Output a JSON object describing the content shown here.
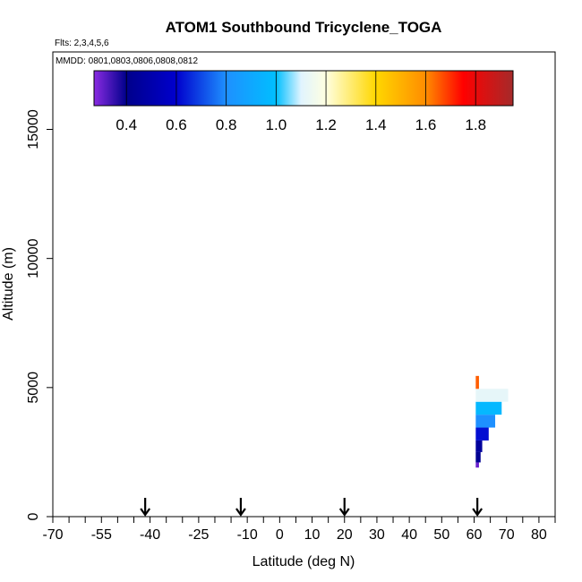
{
  "chart_data": {
    "type": "heatmap",
    "title": "ATOM1 Southbound Tricyclene_TOGA",
    "flights_label": "Flts: 2,3,4,5,6",
    "dates_label": "MMDD: 0801,0803,0806,0808,0812",
    "xlabel": "Latitude (deg N)",
    "ylabel": "Altitude (m)",
    "xlim": [
      -70,
      85
    ],
    "ylim": [
      0,
      18000
    ],
    "x_ticks": [
      -70,
      -55,
      -40,
      -25,
      -10,
      0,
      10,
      20,
      30,
      40,
      50,
      60,
      70,
      80
    ],
    "x_tick_labels": [
      "-70",
      "-55",
      "-40",
      "-25",
      "-10",
      "0",
      "10",
      "20",
      "30",
      "40",
      "50",
      "60",
      "70",
      "80"
    ],
    "x_minor_ticks": [
      -65,
      -60,
      -50,
      -45,
      -35,
      -30,
      -20,
      -15,
      -5,
      5,
      15,
      25,
      35,
      45,
      55,
      65,
      75,
      85
    ],
    "y_ticks": [
      0,
      5000,
      10000,
      15000
    ],
    "y_tick_labels": [
      "0",
      "5000",
      "10000",
      "15000"
    ],
    "colorbar": {
      "range": [
        0.27,
        1.95
      ],
      "ticks": [
        0.4,
        0.6,
        0.8,
        1.0,
        1.2,
        1.4,
        1.6,
        1.8
      ],
      "tick_labels": [
        "0.4",
        "0.6",
        "0.8",
        "1.0",
        "1.2",
        "1.4",
        "1.6",
        "1.8"
      ],
      "stops": [
        {
          "value": 0.27,
          "color": "#8a2be2"
        },
        {
          "value": 0.4,
          "color": "#00008b"
        },
        {
          "value": 0.6,
          "color": "#0000cd"
        },
        {
          "value": 0.8,
          "color": "#1e90ff"
        },
        {
          "value": 1.0,
          "color": "#00bfff"
        },
        {
          "value": 1.1,
          "color": "#e0f4ff"
        },
        {
          "value": 1.2,
          "color": "#ffffe0"
        },
        {
          "value": 1.4,
          "color": "#ffd700"
        },
        {
          "value": 1.6,
          "color": "#ff8c00"
        },
        {
          "value": 1.75,
          "color": "#ff0000"
        },
        {
          "value": 1.95,
          "color": "#a52a2a"
        }
      ]
    },
    "flight_markers_lat": [
      -41.5,
      -12,
      20,
      61
    ],
    "series": [
      {
        "name": "Tricyclene ratio profile",
        "points": [
          {
            "lat_min": 60.5,
            "lat_max": 61.5,
            "alt_min": 1900,
            "alt_max": 2100,
            "value": 0.3
          },
          {
            "lat_min": 60.5,
            "lat_max": 62.0,
            "alt_min": 2100,
            "alt_max": 2500,
            "value": 0.42
          },
          {
            "lat_min": 60.5,
            "lat_max": 62.5,
            "alt_min": 2500,
            "alt_max": 2950,
            "value": 0.45
          },
          {
            "lat_min": 60.5,
            "lat_max": 64.5,
            "alt_min": 2950,
            "alt_max": 3450,
            "value": 0.62
          },
          {
            "lat_min": 60.5,
            "lat_max": 66.5,
            "alt_min": 3450,
            "alt_max": 3950,
            "value": 0.8
          },
          {
            "lat_min": 60.5,
            "lat_max": 68.5,
            "alt_min": 3950,
            "alt_max": 4450,
            "value": 0.97
          },
          {
            "lat_min": 60.5,
            "lat_max": 70.5,
            "alt_min": 4450,
            "alt_max": 4950,
            "value": 1.12
          },
          {
            "lat_min": 60.5,
            "lat_max": 61.5,
            "alt_min": 4950,
            "alt_max": 5450,
            "value": 1.65
          }
        ]
      }
    ]
  }
}
